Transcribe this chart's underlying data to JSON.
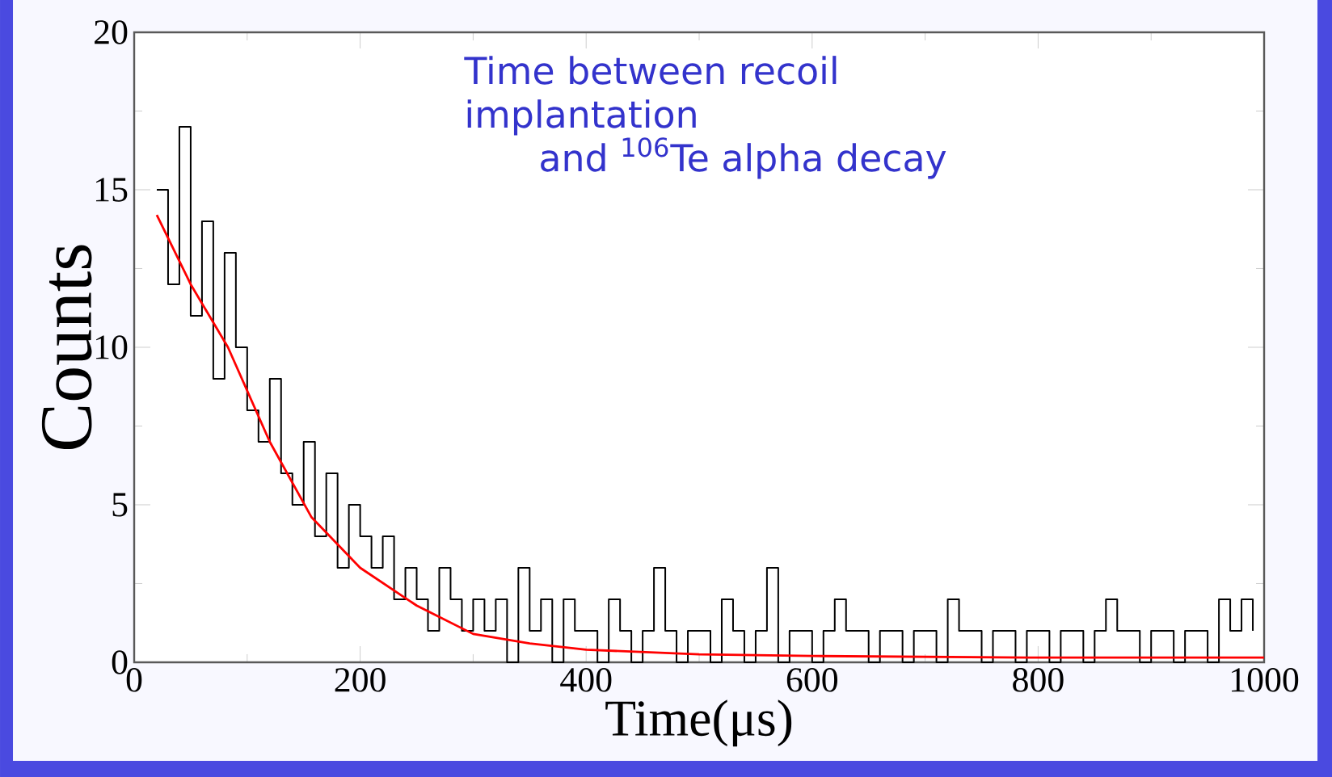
{
  "chart_data": {
    "type": "line",
    "xlabel": "Time(μs)",
    "ylabel": "Counts",
    "annotations": [
      "Time between recoil",
      "implantation",
      "and $^{106}$Te alpha decay"
    ],
    "xlim": [
      0,
      1000
    ],
    "ylim": [
      0,
      20
    ],
    "xticks": [
      0,
      200,
      400,
      600,
      800,
      1000
    ],
    "yticks": [
      0,
      5,
      10,
      15,
      20
    ],
    "grid": false,
    "series": [
      {
        "type": "step",
        "color": "#000000",
        "x": [
          20,
          30,
          40,
          50,
          60,
          70,
          80,
          90,
          100,
          110,
          120,
          130,
          140,
          150,
          160,
          170,
          180,
          190,
          200,
          210,
          220,
          230,
          240,
          250,
          260,
          270,
          280,
          290,
          300,
          310,
          320,
          330,
          340,
          350,
          360,
          370,
          380,
          390,
          400,
          410,
          420,
          430,
          440,
          450,
          460,
          470,
          480,
          490,
          500,
          510,
          520,
          530,
          540,
          550,
          560,
          570,
          580,
          590,
          600,
          610,
          620,
          630,
          640,
          650,
          660,
          670,
          680,
          690,
          700,
          710,
          720,
          730,
          740,
          750,
          760,
          770,
          780,
          790,
          800,
          810,
          820,
          830,
          840,
          850,
          860,
          870,
          880,
          890,
          900,
          910,
          920,
          930,
          940,
          950,
          960,
          970,
          980,
          990
        ],
        "values": [
          15,
          12,
          17,
          11,
          14,
          9,
          13,
          10,
          8,
          7,
          9,
          6,
          5,
          7,
          4,
          6,
          3,
          5,
          4,
          3,
          4,
          2,
          3,
          2,
          1,
          3,
          2,
          1,
          2,
          1,
          2,
          0,
          3,
          1,
          2,
          0,
          2,
          1,
          1,
          0,
          2,
          1,
          0,
          1,
          3,
          1,
          0,
          1,
          1,
          0,
          2,
          1,
          0,
          1,
          3,
          0,
          1,
          1,
          0,
          1,
          2,
          1,
          1,
          0,
          1,
          1,
          0,
          1,
          1,
          0,
          2,
          1,
          1,
          0,
          1,
          1,
          0,
          1,
          1,
          0,
          1,
          1,
          0,
          1,
          2,
          1,
          1,
          0,
          1,
          1,
          0,
          1,
          1,
          0,
          2,
          1,
          2,
          1
        ]
      },
      {
        "color": "#ff0000",
        "x": [
          20,
          50,
          83,
          120,
          157,
          200,
          250,
          300,
          350,
          400,
          500,
          600,
          800,
          1000
        ],
        "values": [
          14.2,
          12,
          10,
          7,
          4.6,
          3.0,
          1.8,
          0.9,
          0.6,
          0.4,
          0.25,
          0.2,
          0.15,
          0.15
        ]
      }
    ]
  }
}
